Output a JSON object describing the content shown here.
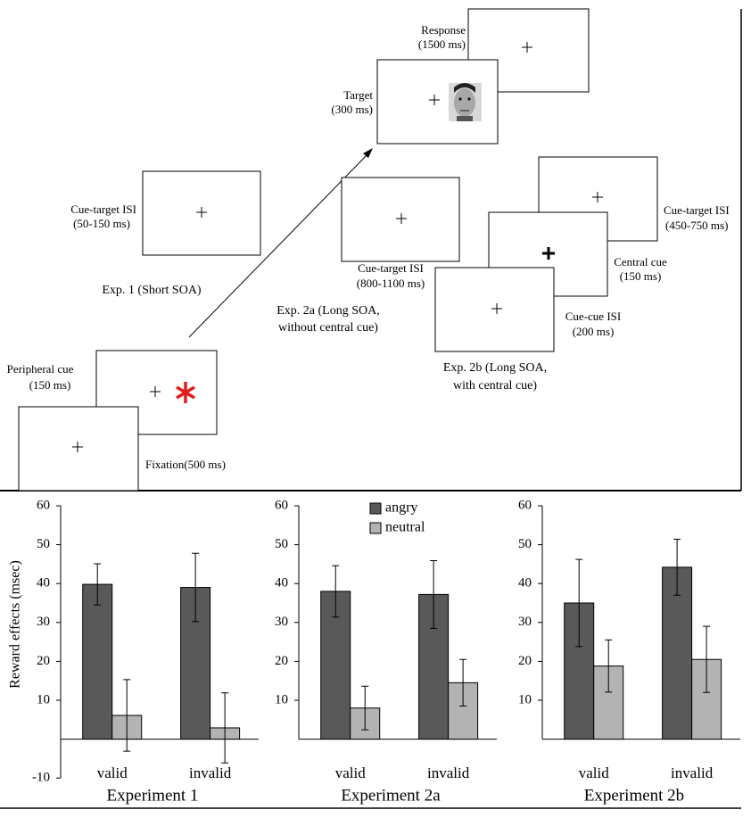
{
  "diagram": {
    "response": [
      "Response",
      "(1500 ms)"
    ],
    "target": [
      "Target",
      "(300 ms)"
    ],
    "isi_short": [
      "Cue-target ISI",
      "(50-150 ms)"
    ],
    "exp1": "Exp. 1 (Short SOA)",
    "isi_2a": [
      "Cue-target ISI",
      "(800-1100 ms)"
    ],
    "exp2a": [
      "Exp. 2a (Long SOA,",
      "without central cue)"
    ],
    "isi_2b": [
      "Cue-target ISI",
      "(450-750 ms)"
    ],
    "central_cue": [
      "Central cue",
      "(150 ms)"
    ],
    "cue_cue_isi": [
      "Cue-cue ISI",
      "(200 ms)"
    ],
    "exp2b": [
      "Exp. 2b (Long SOA,",
      "with central cue)"
    ],
    "peripheral_cue": [
      "Peripheral cue",
      "(150 ms)"
    ],
    "fixation": "Fixation(500 ms)"
  },
  "chart_data": [
    {
      "type": "bar",
      "title": "Experiment 1",
      "ylabel": "Reward effects (msec)",
      "categories": [
        "valid",
        "invalid"
      ],
      "series": [
        {
          "color": "#595959",
          "values": [
            39.8,
            39
          ],
          "errors": [
            5.3,
            8.8
          ]
        },
        {
          "color": "#b3b3b3",
          "values": [
            6.1,
            2.9
          ],
          "errors": [
            9.2,
            9
          ]
        }
      ],
      "ylim": [
        -10,
        60
      ],
      "yticks": [
        -10,
        10,
        20,
        30,
        40,
        50,
        60
      ]
    },
    {
      "type": "bar",
      "title": "Experiment 2a",
      "categories": [
        "valid",
        "invalid"
      ],
      "series": [
        {
          "name": "angry",
          "color": "#595959",
          "values": [
            38,
            37.2
          ],
          "errors": [
            6.6,
            8.7
          ]
        },
        {
          "name": "neutral",
          "color": "#b3b3b3",
          "values": [
            8,
            14.5
          ],
          "errors": [
            5.6,
            6
          ]
        }
      ],
      "legend": "top",
      "ylim": [
        0,
        60
      ],
      "yticks": [
        10,
        20,
        30,
        40,
        50,
        60
      ]
    },
    {
      "type": "bar",
      "title": "Experiment 2b",
      "categories": [
        "valid",
        "invalid"
      ],
      "series": [
        {
          "color": "#595959",
          "values": [
            35,
            44.2
          ],
          "errors": [
            11.2,
            7.2
          ]
        },
        {
          "color": "#b3b3b3",
          "values": [
            18.8,
            20.5
          ],
          "errors": [
            6.7,
            8.5
          ]
        }
      ],
      "ylim": [
        0,
        60
      ],
      "yticks": [
        10,
        20,
        30,
        40,
        50,
        60
      ]
    }
  ]
}
